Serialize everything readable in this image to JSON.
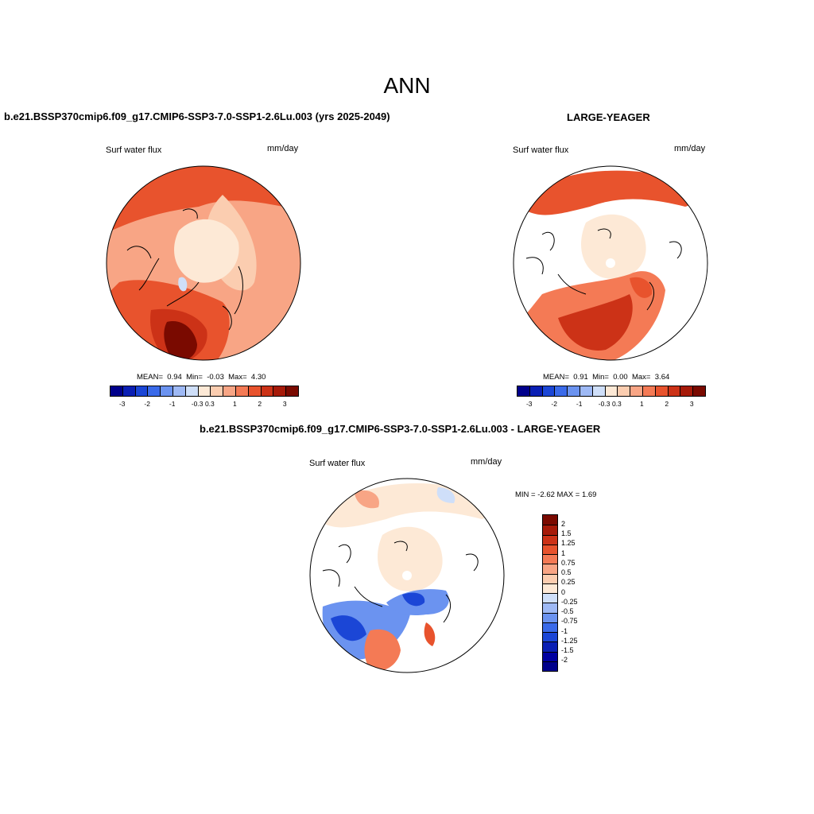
{
  "title": "ANN",
  "panels": [
    {
      "title": "b.e21.BSSP370cmip6.f09_g17.CMIP6-SSP3-7.0-SSP1-2.6Lu.003 (yrs 2025-2049)",
      "variable": "Surf water flux",
      "units": "mm/day",
      "stats": {
        "mean_label": "MEAN=",
        "mean": "0.94",
        "min_label": "Min=",
        "min": "-0.03",
        "max_label": "Max=",
        "max": "4.30"
      }
    },
    {
      "title": "LARGE-YEAGER",
      "variable": "Surf water flux",
      "units": "mm/day",
      "stats": {
        "mean_label": "MEAN=",
        "mean": "0.91",
        "min_label": "Min=",
        "min": "0.00",
        "max_label": "Max=",
        "max": "3.64"
      }
    },
    {
      "title": "b.e21.BSSP370cmip6.f09_g17.CMIP6-SSP3-7.0-SSP1-2.6Lu.003 - LARGE-YEAGER",
      "variable": "Surf water flux",
      "units": "mm/day",
      "minmax": "MIN =  -2.62 MAX =   1.69"
    }
  ],
  "colorbar_horizontal": {
    "colors": [
      "#00008b",
      "#0a1fb4",
      "#1b46d6",
      "#3a6ae9",
      "#6b93f0",
      "#9eb9f5",
      "#cfdff9",
      "#fde9d6",
      "#fbcdb0",
      "#f8a585",
      "#f47a55",
      "#e8532d",
      "#cc3217",
      "#a61a09",
      "#7a0a00"
    ],
    "tick_labels": [
      "-3",
      "-2",
      "-1",
      "-0.3",
      "0.3",
      "1",
      "2",
      "3"
    ]
  },
  "colorbar_vertical": {
    "colors": [
      "#7a0a00",
      "#a61a09",
      "#cc3217",
      "#e8532d",
      "#f47a55",
      "#f8a585",
      "#fbcdb0",
      "#fde9d6",
      "#cfdff9",
      "#9eb9f5",
      "#6b93f0",
      "#3a6ae9",
      "#1b46d6",
      "#0a1fb4",
      "#0000a0",
      "#00008b"
    ],
    "tick_labels": [
      "2",
      "1.5",
      "1.25",
      "1",
      "0.75",
      "0.5",
      "0.25",
      "0",
      "-0.25",
      "-0.5",
      "-0.75",
      "-1",
      "-1.25",
      "-1.5",
      "-2"
    ]
  }
}
